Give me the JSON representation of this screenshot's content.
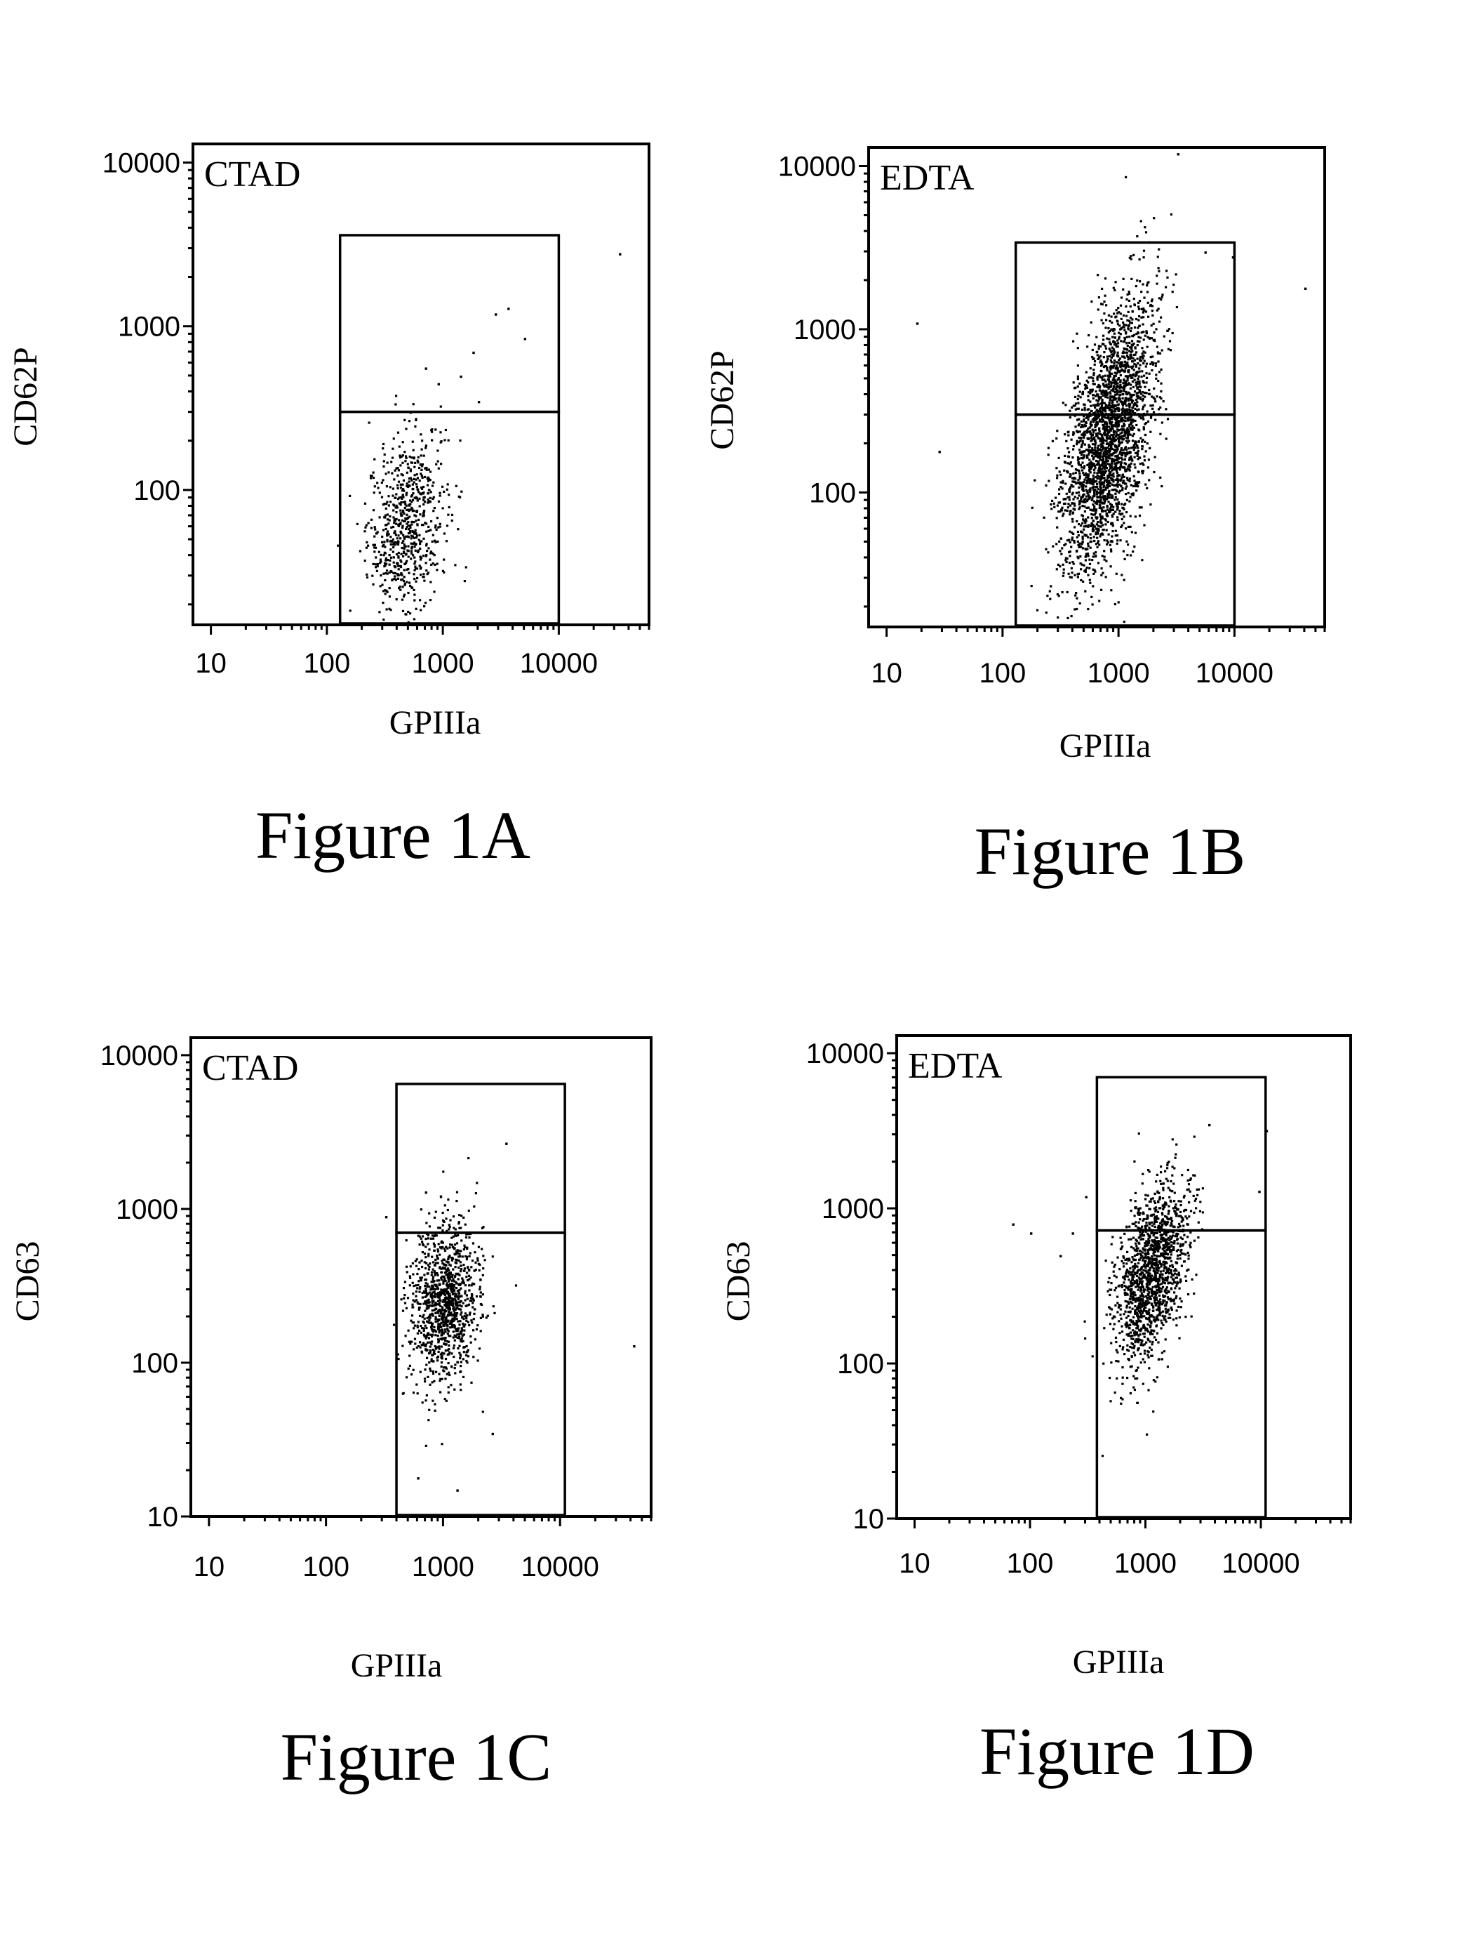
{
  "chart_data": [
    {
      "id": "1A",
      "type": "scatter",
      "title": "CTAD",
      "caption": "Figure 1A",
      "xlabel": "GPIIIa",
      "ylabel": "CD62P",
      "xscale": "log",
      "yscale": "log",
      "xlim": [
        7,
        60000
      ],
      "ylim": [
        15,
        13000
      ],
      "xticks": [
        10,
        100,
        1000,
        10000
      ],
      "xtick_labels": [
        "10",
        "100",
        "1000",
        "10000"
      ],
      "yticks": [
        100,
        1000,
        10000
      ],
      "ytick_labels": [
        "100",
        "1000",
        "10000"
      ],
      "gate": {
        "x": [
          130,
          10000
        ],
        "y_low": 15,
        "y_split": 300,
        "y_high": 3600
      },
      "population": {
        "count": 700,
        "x_median": 480,
        "x_spread": 0.17,
        "y_median": 65,
        "y_spread": 0.28,
        "corr": 0.25
      },
      "outliers": [
        [
          2800,
          1200
        ],
        [
          3600,
          1300
        ],
        [
          900,
          450
        ],
        [
          1400,
          500
        ],
        [
          2000,
          350
        ],
        [
          700,
          560
        ],
        [
          33000,
          2800
        ],
        [
          5000,
          850
        ],
        [
          1800,
          700
        ]
      ]
    },
    {
      "id": "1B",
      "type": "scatter",
      "title": "EDTA",
      "caption": "Figure 1B",
      "xlabel": "GPIIIa",
      "ylabel": "CD62P",
      "xscale": "log",
      "yscale": "log",
      "xlim": [
        7,
        60000
      ],
      "ylim": [
        15,
        13000
      ],
      "xticks": [
        10,
        100,
        1000,
        10000
      ],
      "xtick_labels": [
        "10",
        "100",
        "1000",
        "10000"
      ],
      "yticks": [
        100,
        1000,
        10000
      ],
      "ytick_labels": [
        "100",
        "1000",
        "10000"
      ],
      "gate": {
        "x": [
          130,
          10000
        ],
        "y_low": 15,
        "y_split": 300,
        "y_high": 3400
      },
      "population": {
        "count": 2600,
        "x_median": 800,
        "x_spread": 0.2,
        "y_median": 220,
        "y_spread": 0.42,
        "corr": 0.55
      },
      "outliers": [
        [
          18,
          1100
        ],
        [
          28,
          180
        ],
        [
          5500,
          3000
        ],
        [
          9500,
          2800
        ],
        [
          40000,
          1800
        ],
        [
          3200,
          12000
        ]
      ]
    },
    {
      "id": "1C",
      "type": "scatter",
      "title": "CTAD",
      "caption": "Figure 1C",
      "xlabel": "GPIIIa",
      "ylabel": "CD63",
      "xscale": "log",
      "yscale": "log",
      "xlim": [
        7,
        60000
      ],
      "ylim": [
        10,
        13000
      ],
      "xticks": [
        10,
        100,
        1000,
        10000
      ],
      "xtick_labels": [
        "10",
        "100",
        "1000",
        "10000"
      ],
      "yticks": [
        10,
        100,
        1000,
        10000
      ],
      "ytick_labels": [
        "10",
        "100",
        "1000",
        "10000"
      ],
      "gate": {
        "x": [
          400,
          11000
        ],
        "y_low": 10,
        "y_split": 700,
        "y_high": 6500
      },
      "population": {
        "count": 1100,
        "x_median": 1000,
        "x_spread": 0.15,
        "y_median": 250,
        "y_spread": 0.27,
        "corr": 0.2
      },
      "outliers": [
        [
          3400,
          2700
        ],
        [
          42000,
          130
        ],
        [
          320,
          900
        ],
        [
          700,
          1300
        ],
        [
          2600,
          35
        ],
        [
          1300,
          15
        ],
        [
          600,
          18
        ]
      ]
    },
    {
      "id": "1D",
      "type": "scatter",
      "title": "EDTA",
      "caption": "Figure 1D",
      "xlabel": "GPIIIa",
      "ylabel": "CD63",
      "xscale": "log",
      "yscale": "log",
      "xlim": [
        7,
        60000
      ],
      "ylim": [
        10,
        13000
      ],
      "xticks": [
        10,
        100,
        1000,
        10000
      ],
      "xtick_labels": [
        "10",
        "100",
        "1000",
        "10000"
      ],
      "yticks": [
        10,
        100,
        1000,
        10000
      ],
      "ytick_labels": [
        "10",
        "100",
        "1000",
        "10000"
      ],
      "gate": {
        "x": [
          380,
          11000
        ],
        "y_low": 10,
        "y_split": 720,
        "y_high": 7000
      },
      "population": {
        "count": 1500,
        "x_median": 1100,
        "x_spread": 0.16,
        "y_median": 380,
        "y_spread": 0.3,
        "corr": 0.45
      },
      "outliers": [
        [
          70,
          800
        ],
        [
          100,
          700
        ],
        [
          180,
          500
        ],
        [
          230,
          700
        ],
        [
          11000,
          3200
        ],
        [
          9500,
          1300
        ],
        [
          3500,
          3500
        ],
        [
          300,
          1200
        ]
      ]
    }
  ]
}
